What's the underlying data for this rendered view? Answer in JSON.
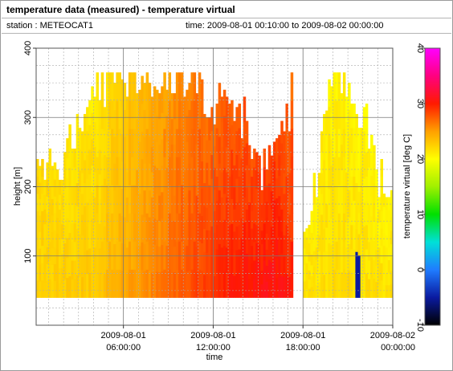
{
  "title": "temperature data (measured) - temperature virtual",
  "station_label": "station : METEOCAT1",
  "time_label": "time: 2009-08-01 00:10:00 to 2009-08-02 00:00:00",
  "chart_data": {
    "type": "heatmap",
    "xlabel": "time",
    "ylabel": "height [m]",
    "colorbar_label": "temperature virtual [deg C]",
    "x_ticks": [
      {
        "hour": 6,
        "line1": "2009-08-01",
        "line2": "06:00:00"
      },
      {
        "hour": 12,
        "line1": "2009-08-01",
        "line2": "12:00:00"
      },
      {
        "hour": 18,
        "line1": "2009-08-01",
        "line2": "18:00:00"
      },
      {
        "hour": 24,
        "line1": "2009-08-02",
        "line2": "00:00:00"
      }
    ],
    "xlim_hours": [
      0.1667,
      24
    ],
    "ylim": [
      0,
      400
    ],
    "y_ticks": [
      100,
      200,
      300,
      400
    ],
    "colorbar_ticks": [
      -10,
      0,
      10,
      20,
      30,
      40
    ],
    "colorbar_range": [
      -10,
      40
    ],
    "colorscale": [
      [
        -10,
        "#000000"
      ],
      [
        -5,
        "#0a1aa0"
      ],
      [
        0,
        "#1f7cff"
      ],
      [
        5,
        "#00e0d8"
      ],
      [
        10,
        "#00e000"
      ],
      [
        15,
        "#a0f000"
      ],
      [
        20,
        "#ffff00"
      ],
      [
        25,
        "#ffa000"
      ],
      [
        30,
        "#ff1a00"
      ],
      [
        35,
        "#ff0080"
      ],
      [
        40,
        "#ff00ff"
      ]
    ],
    "grid": true,
    "data_floor_m": 40,
    "step_minutes": 10,
    "profile_tops": [
      {
        "hour": 0.17,
        "top_m": 240
      },
      {
        "hour": 1.0,
        "top_m": 230
      },
      {
        "hour": 2.0,
        "top_m": 250
      },
      {
        "hour": 3.0,
        "top_m": 300
      },
      {
        "hour": 4.0,
        "top_m": 340
      },
      {
        "hour": 5.0,
        "top_m": 350
      },
      {
        "hour": 5.5,
        "top_m": 365
      },
      {
        "hour": 8.0,
        "top_m": 365
      },
      {
        "hour": 10.0,
        "top_m": 355
      },
      {
        "hour": 12.0,
        "top_m": 320
      },
      {
        "hour": 13.5,
        "top_m": 330
      },
      {
        "hour": 15.0,
        "top_m": 220
      },
      {
        "hour": 16.0,
        "top_m": 235
      },
      {
        "hour": 17.0,
        "top_m": 300
      },
      {
        "hour": 17.2,
        "top_m": 365
      }
    ],
    "data_gap_hours": [
      17.3,
      18.0
    ],
    "tail_tops": [
      {
        "hour": 18.0,
        "top_m": 110
      },
      {
        "hour": 19.0,
        "top_m": 240
      },
      {
        "hour": 19.5,
        "top_m": 340
      },
      {
        "hour": 20.5,
        "top_m": 365
      },
      {
        "hour": 22.0,
        "top_m": 300
      },
      {
        "hour": 23.0,
        "top_m": 220
      },
      {
        "hour": 24.0,
        "top_m": 165
      }
    ],
    "temperature_profile": [
      {
        "hour": 0,
        "surface_c": 22.5,
        "top_c": 22.0
      },
      {
        "hour": 4,
        "surface_c": 23.0,
        "top_c": 21.0
      },
      {
        "hour": 7,
        "surface_c": 25.5,
        "top_c": 23.5
      },
      {
        "hour": 10,
        "surface_c": 28.0,
        "top_c": 26.0
      },
      {
        "hour": 13,
        "surface_c": 30.0,
        "top_c": 27.5
      },
      {
        "hour": 16,
        "surface_c": 31.0,
        "top_c": 28.5
      },
      {
        "hour": 17.2,
        "surface_c": 30.0,
        "top_c": 27.0
      },
      {
        "hour": 18,
        "surface_c": 21.5,
        "top_c": 21.0
      },
      {
        "hour": 21,
        "surface_c": 22.0,
        "top_c": 20.5
      },
      {
        "hour": 24,
        "surface_c": 21.5,
        "top_c": 20.5
      }
    ],
    "cold_spot": {
      "hour": 21.6,
      "height_min_m": 40,
      "height_max_m": 75,
      "temp_c": -5
    }
  }
}
